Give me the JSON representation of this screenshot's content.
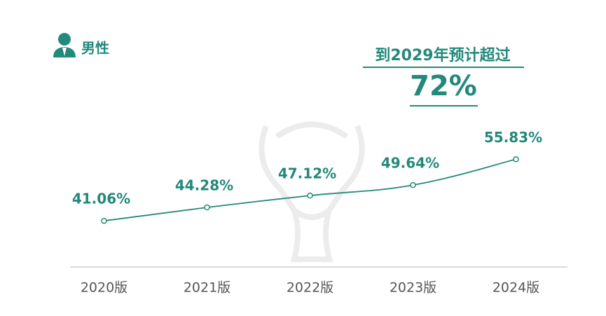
{
  "header": {
    "title": "男性"
  },
  "chart_data": {
    "type": "line",
    "annotation": {
      "text": "到2029年预计超过",
      "value": "72%"
    },
    "categories": [
      "2020版",
      "2021版",
      "2022版",
      "2023版",
      "2024版"
    ],
    "values": [
      41.06,
      44.28,
      47.12,
      49.64,
      55.83
    ],
    "value_labels": [
      "41.06%",
      "44.28%",
      "47.12%",
      "49.64%",
      "55.83%"
    ],
    "color": "#23897a",
    "ylim": [
      30,
      70
    ]
  }
}
